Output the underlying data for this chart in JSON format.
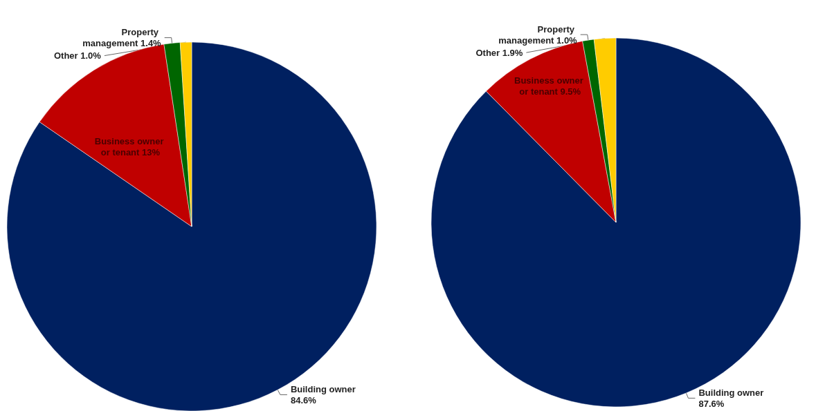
{
  "chart_data": [
    {
      "type": "pie",
      "categories": [
        "Building owner",
        "Business owner or tenant",
        "Property management",
        "Other"
      ],
      "values": [
        84.6,
        13,
        1.4,
        1.0
      ],
      "value_labels": [
        "84.6%",
        "13%",
        "1.4%",
        "1.0%"
      ],
      "colors": [
        "#002060",
        "#c00000",
        "#006600",
        "#ffcc00"
      ],
      "legend": false
    },
    {
      "type": "pie",
      "categories": [
        "Building owner",
        "Business owner or tenant",
        "Property management",
        "Other"
      ],
      "values": [
        87.6,
        9.5,
        1.0,
        1.9
      ],
      "value_labels": [
        "87.6%",
        "9.5%",
        "1.0%",
        "1.9%"
      ],
      "colors": [
        "#002060",
        "#c00000",
        "#006600",
        "#ffcc00"
      ],
      "legend": false
    }
  ]
}
